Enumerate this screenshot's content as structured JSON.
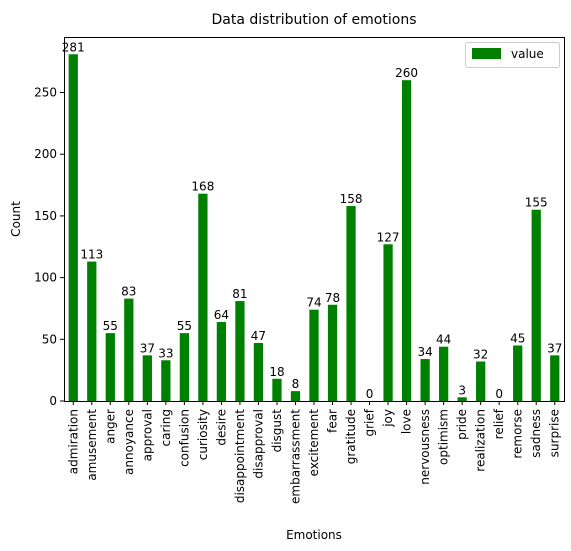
{
  "chart_data": {
    "type": "bar",
    "title": "Data distribution of emotions",
    "xlabel": "Emotions",
    "ylabel": "Count",
    "ylim": [
      0,
      295
    ],
    "yticks": [
      0,
      50,
      100,
      150,
      200,
      250
    ],
    "grid": false,
    "legend": {
      "placement": "top-right",
      "entries": [
        "value"
      ]
    },
    "bar_color": "#008000",
    "categories": [
      "admiration",
      "amusement",
      "anger",
      "annoyance",
      "approval",
      "caring",
      "confusion",
      "curiosity",
      "desire",
      "disappointment",
      "disapproval",
      "disgust",
      "embarrassment",
      "excitement",
      "fear",
      "gratitude",
      "grief",
      "joy",
      "love",
      "nervousness",
      "optimism",
      "pride",
      "realization",
      "relief",
      "remorse",
      "sadness",
      "surprise"
    ],
    "series": [
      {
        "name": "value",
        "values": [
          281,
          113,
          55,
          83,
          37,
          33,
          55,
          168,
          64,
          81,
          47,
          18,
          8,
          74,
          78,
          158,
          0,
          127,
          260,
          34,
          44,
          3,
          32,
          0,
          45,
          155,
          37
        ]
      }
    ]
  }
}
